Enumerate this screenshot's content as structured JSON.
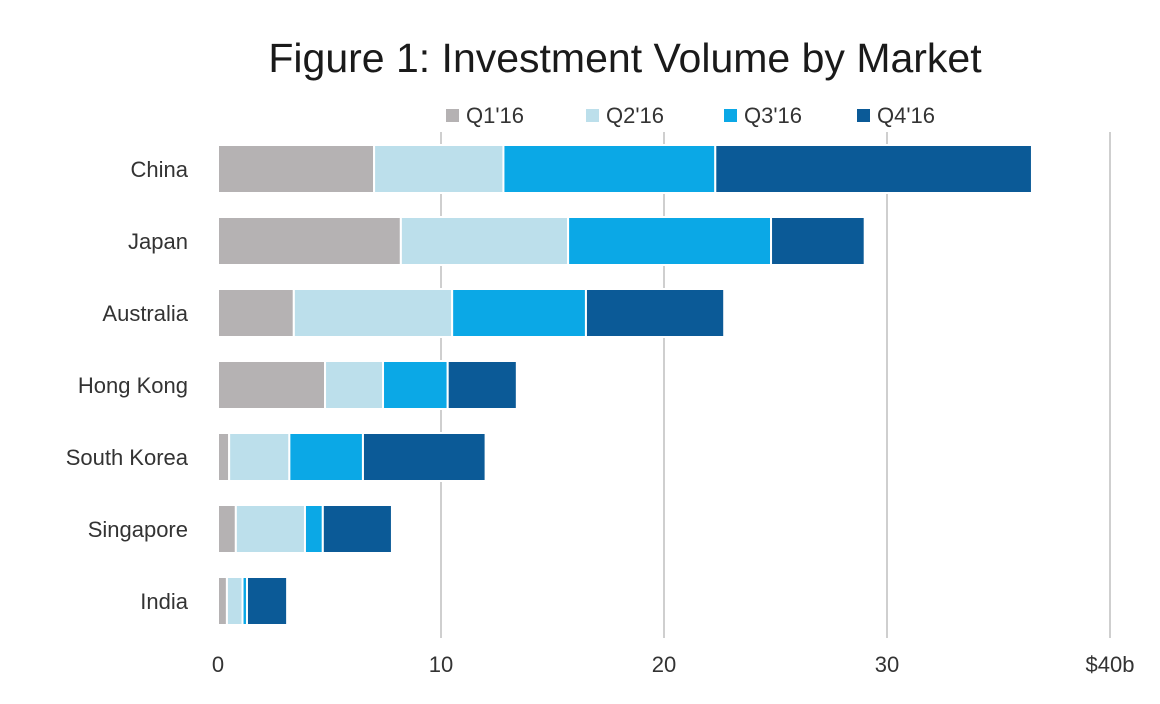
{
  "chart_data": {
    "type": "bar",
    "orientation": "horizontal",
    "stacked": true,
    "title": "Figure 1: Investment Volume by Market",
    "xlabel": "",
    "ylabel": "",
    "categories": [
      "China",
      "Japan",
      "Australia",
      "Hong Kong",
      "South Korea",
      "Singapore",
      "India"
    ],
    "series": [
      {
        "name": "Q1'16",
        "color": "#b5b2b3",
        "values": [
          7.0,
          8.2,
          3.4,
          4.8,
          0.5,
          0.8,
          0.4
        ]
      },
      {
        "name": "Q2'16",
        "color": "#bcdfeb",
        "values": [
          5.8,
          7.5,
          7.1,
          2.6,
          2.7,
          3.1,
          0.7
        ]
      },
      {
        "name": "Q3'16",
        "color": "#0ba8e6",
        "values": [
          9.5,
          9.1,
          6.0,
          2.9,
          3.3,
          0.8,
          0.2
        ]
      },
      {
        "name": "Q4'16",
        "color": "#0b5a97",
        "values": [
          14.2,
          4.2,
          6.2,
          3.1,
          5.5,
          3.1,
          1.8
        ]
      }
    ],
    "xlim": [
      0,
      40
    ],
    "ticks": [
      0,
      10,
      20,
      30,
      40
    ],
    "tick_labels": [
      "0",
      "10",
      "20",
      "30",
      "$40b"
    ],
    "grid": true,
    "legend_position": "top"
  }
}
